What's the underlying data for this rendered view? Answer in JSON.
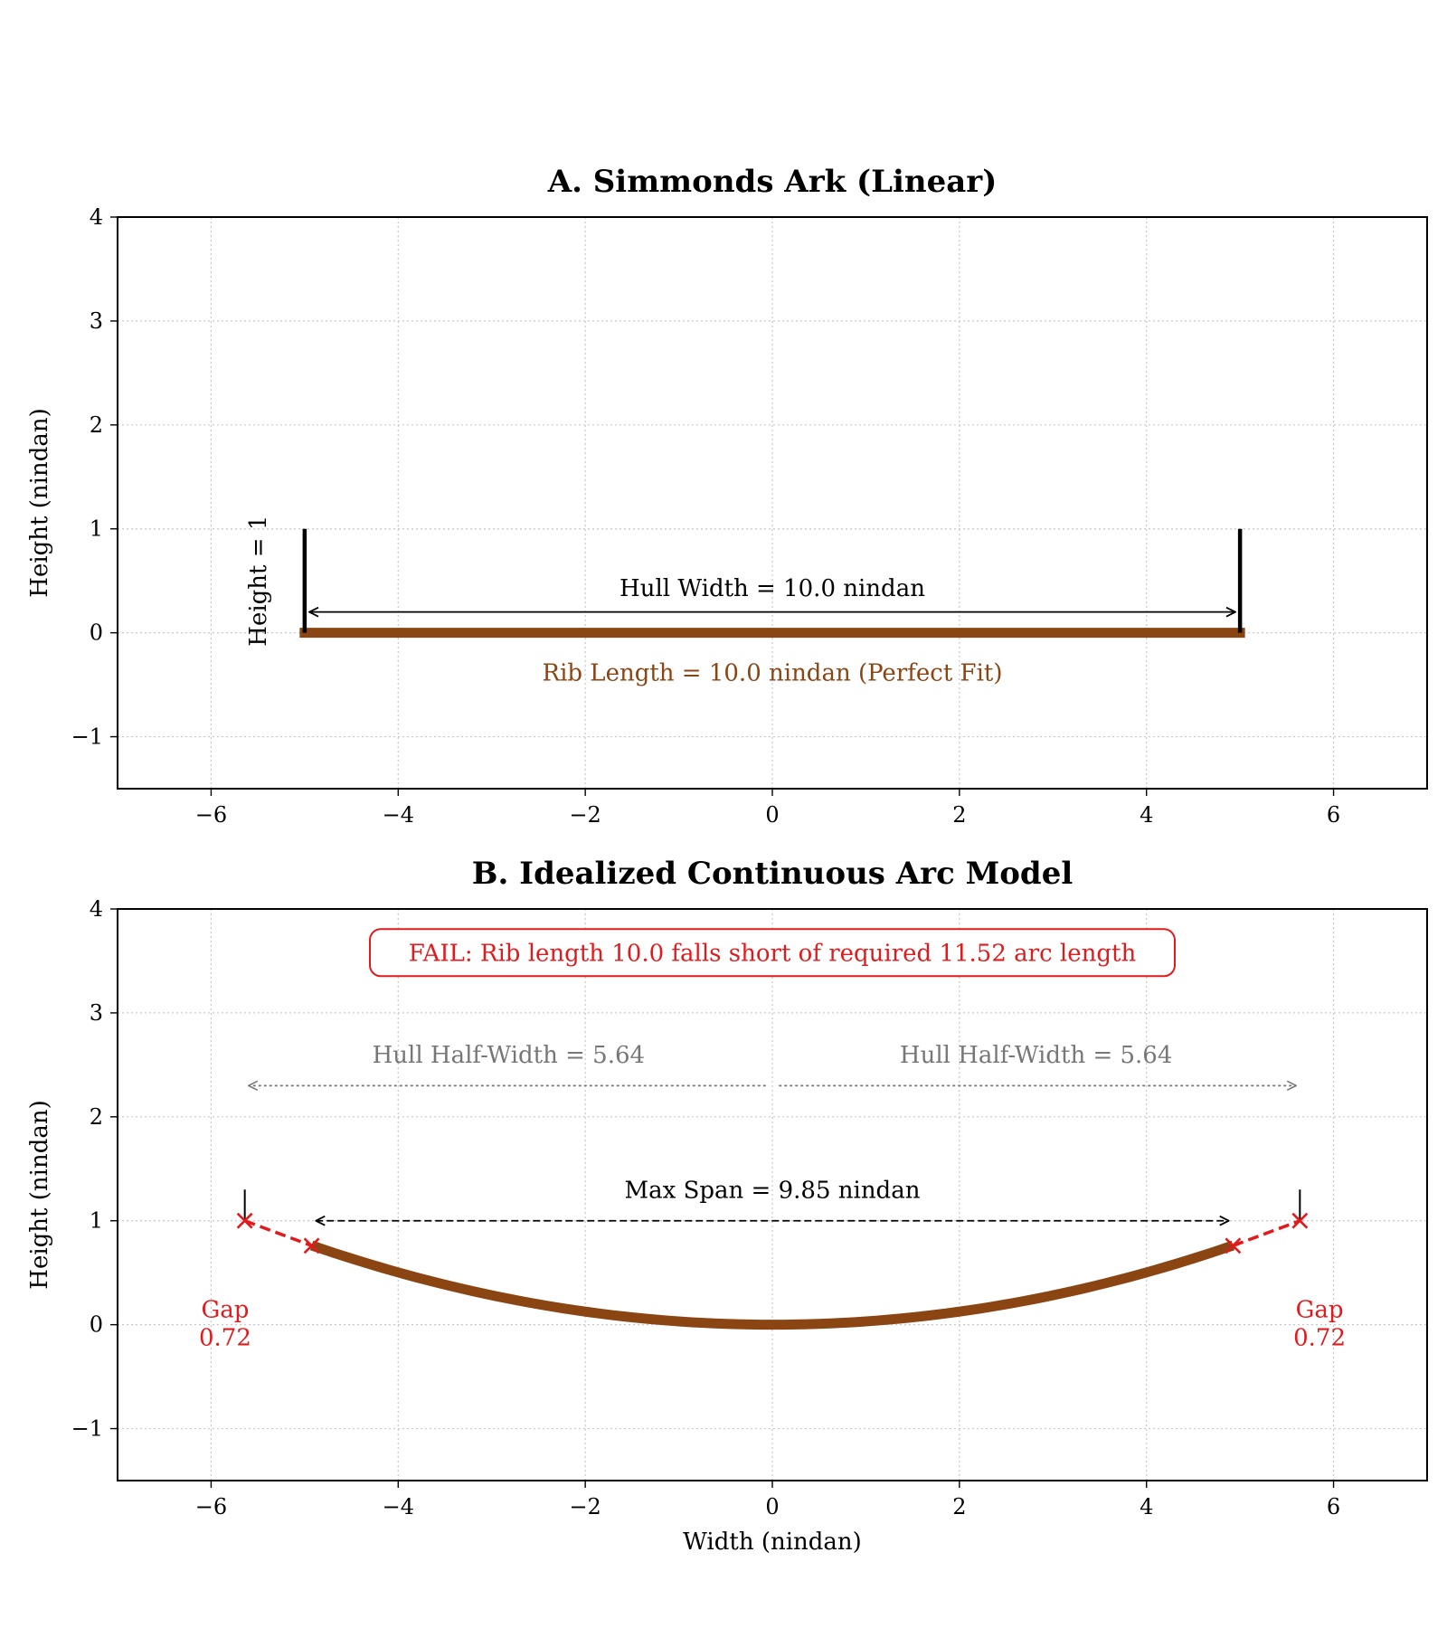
{
  "chart_data": [
    {
      "type": "line",
      "title": "A. Simmonds Ark (Linear)",
      "xlabel": "",
      "ylabel": "Height (nindan)",
      "xlim": [
        -7,
        7
      ],
      "ylim": [
        -1.5,
        4
      ],
      "xticks": [
        -6,
        -4,
        -2,
        0,
        2,
        4,
        6
      ],
      "yticks": [
        -1,
        0,
        1,
        2,
        3,
        4
      ],
      "xtick_labels": [
        "−6",
        "−4",
        "−2",
        "0",
        "2",
        "4",
        "6"
      ],
      "ytick_labels": [
        "−1",
        "0",
        "1",
        "2",
        "3",
        "4"
      ],
      "grid": true,
      "series": [
        {
          "role": "rib",
          "color": "#8B4513",
          "x": [
            -5,
            5
          ],
          "y": [
            0,
            0
          ]
        },
        {
          "role": "left-wall",
          "color": "#000000",
          "x": [
            -5,
            -5
          ],
          "y": [
            0,
            1
          ]
        },
        {
          "role": "right-wall",
          "color": "#000000",
          "x": [
            5,
            5
          ],
          "y": [
            0,
            1
          ]
        }
      ],
      "arrows": [
        {
          "from": [
            -4.95,
            0.2
          ],
          "to": [
            4.95,
            0.2
          ],
          "color": "#000000",
          "style": "solid"
        }
      ],
      "annotations": [
        {
          "text": "Hull Width = 10.0 nindan",
          "x": 0,
          "y": 0.43,
          "color": "#000000"
        },
        {
          "text": "Rib Length = 10.0 nindan (Perfect Fit)",
          "x": 0,
          "y": -0.38,
          "color": "#8B4513"
        },
        {
          "text": "Height = 1",
          "x": -5.5,
          "y": 0.5,
          "color": "#000000",
          "rotation": -90
        }
      ]
    },
    {
      "type": "line",
      "title": "B. Idealized Continuous Arc Model",
      "xlabel": "Width (nindan)",
      "ylabel": "Height (nindan)",
      "xlim": [
        -7,
        7
      ],
      "ylim": [
        -1.5,
        4
      ],
      "xticks": [
        -6,
        -4,
        -2,
        0,
        2,
        4,
        6
      ],
      "yticks": [
        -1,
        0,
        1,
        2,
        3,
        4
      ],
      "xtick_labels": [
        "−6",
        "−4",
        "−2",
        "0",
        "2",
        "4",
        "6"
      ],
      "ytick_labels": [
        "−1",
        "0",
        "1",
        "2",
        "3",
        "4"
      ],
      "grid": true,
      "series": [
        {
          "role": "rib-arc",
          "color": "#8B4513",
          "curve": "y = 1 * (x / 5.64)^2",
          "x_range": [
            -4.925,
            4.925
          ]
        },
        {
          "role": "gap-left",
          "color": "#e31a1c",
          "style": "dashed",
          "x": [
            -5.64,
            -4.925
          ],
          "y": [
            1,
            0.76
          ]
        },
        {
          "role": "gap-right",
          "color": "#e31a1c",
          "style": "dashed",
          "x": [
            4.925,
            5.64
          ],
          "y": [
            0.76,
            1
          ]
        },
        {
          "role": "wall-tick-left",
          "color": "#000000",
          "x": [
            -5.64,
            -5.64
          ],
          "y": [
            1,
            1.3
          ]
        },
        {
          "role": "wall-tick-right",
          "color": "#000000",
          "x": [
            5.64,
            5.64
          ],
          "y": [
            1,
            1.3
          ]
        }
      ],
      "markers": [
        {
          "x": -5.64,
          "y": 1,
          "shape": "x",
          "color": "#e31a1c"
        },
        {
          "x": -4.925,
          "y": 0.76,
          "shape": "x",
          "color": "#e31a1c"
        },
        {
          "x": 4.925,
          "y": 0.76,
          "shape": "x",
          "color": "#e31a1c"
        },
        {
          "x": 5.64,
          "y": 1,
          "shape": "x",
          "color": "#e31a1c"
        }
      ],
      "arrows": [
        {
          "from": [
            -4.88,
            1.0
          ],
          "to": [
            4.88,
            1.0
          ],
          "color": "#000000",
          "style": "dashed"
        },
        {
          "from": [
            -0.07,
            2.3
          ],
          "to": [
            -5.6,
            2.3
          ],
          "color": "#777777",
          "style": "dotted"
        },
        {
          "from": [
            0.07,
            2.3
          ],
          "to": [
            5.6,
            2.3
          ],
          "color": "#777777",
          "style": "dotted"
        }
      ],
      "annotations": [
        {
          "text": "FAIL: Rib length 10.0 falls short of required 11.52 arc length",
          "x": 0,
          "y": 3.58,
          "color": "#e31a1c",
          "boxed": true
        },
        {
          "text": "Hull Half-Width = 5.64",
          "x": -2.82,
          "y": 2.6,
          "color": "#777777"
        },
        {
          "text": "Hull Half-Width = 5.64",
          "x": 2.82,
          "y": 2.6,
          "color": "#777777"
        },
        {
          "text": "Max Span = 9.85 nindan",
          "x": 0,
          "y": 1.3,
          "color": "#000000"
        },
        {
          "text": "Gap",
          "x": -5.85,
          "y": 0.15,
          "color": "#e31a1c"
        },
        {
          "text": "0.72",
          "x": -5.85,
          "y": -0.12,
          "color": "#e31a1c"
        },
        {
          "text": "Gap",
          "x": 5.85,
          "y": 0.15,
          "color": "#e31a1c"
        },
        {
          "text": "0.72",
          "x": 5.85,
          "y": -0.12,
          "color": "#e31a1c"
        }
      ]
    }
  ]
}
